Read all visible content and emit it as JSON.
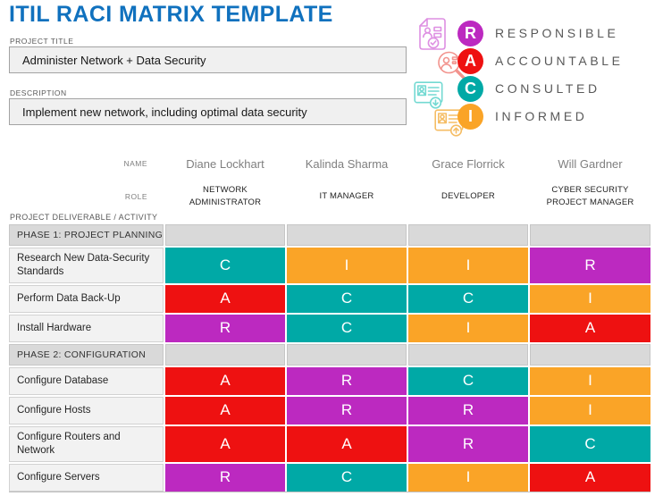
{
  "header": {
    "title": "ITIL RACI MATRIX TEMPLATE"
  },
  "fields": {
    "project_title": {
      "label": "PROJECT TITLE",
      "value": "Administer Network + Data Security"
    },
    "description": {
      "label": "DESCRIPTION",
      "value": "Implement new network, including optimal data security"
    }
  },
  "legend": {
    "items": [
      {
        "letter": "R",
        "label": "RESPONSIBLE",
        "color": "#BC29C0",
        "icon": "document-check-icon"
      },
      {
        "letter": "A",
        "label": "ACCOUNTABLE",
        "color": "#EE1111",
        "icon": "magnifier-person-icon"
      },
      {
        "letter": "C",
        "label": "CONSULTED",
        "color": "#00A9A6",
        "icon": "id-card-download-icon"
      },
      {
        "letter": "I",
        "label": "INFORMED",
        "color": "#FAA427",
        "icon": "id-card-upload-icon"
      }
    ]
  },
  "colors": {
    "R": "#BC29C0",
    "A": "#EE1111",
    "C": "#00A9A6",
    "I": "#FAA427"
  },
  "matrix": {
    "name_label": "NAME",
    "role_label": "ROLE",
    "deliverable_label": "PROJECT DELIVERABLE / ACTIVITY",
    "people": [
      {
        "name": "Diane Lockhart",
        "role": "NETWORK ADMINISTRATOR"
      },
      {
        "name": "Kalinda Sharma",
        "role": "IT MANAGER"
      },
      {
        "name": "Grace Florrick",
        "role": "DEVELOPER"
      },
      {
        "name": "Will Gardner",
        "role": "CYBER SECURITY PROJECT MANAGER"
      }
    ],
    "sections": [
      {
        "phase": "PHASE 1: PROJECT PLANNING",
        "rows": [
          {
            "activity": "Research New Data-Security Standards",
            "codes": [
              "C",
              "I",
              "I",
              "R"
            ]
          },
          {
            "activity": "Perform Data Back-Up",
            "codes": [
              "A",
              "C",
              "C",
              "I"
            ]
          },
          {
            "activity": "Install Hardware",
            "codes": [
              "R",
              "C",
              "I",
              "A"
            ]
          }
        ]
      },
      {
        "phase": "PHASE 2: CONFIGURATION",
        "rows": [
          {
            "activity": "Configure Database",
            "codes": [
              "A",
              "R",
              "C",
              "I"
            ]
          },
          {
            "activity": "Configure Hosts",
            "codes": [
              "A",
              "R",
              "R",
              "I"
            ]
          },
          {
            "activity": "Configure Routers and Network",
            "codes": [
              "A",
              "A",
              "R",
              "C"
            ]
          },
          {
            "activity": "Configure Servers",
            "codes": [
              "R",
              "C",
              "I",
              "A"
            ]
          }
        ]
      }
    ]
  }
}
